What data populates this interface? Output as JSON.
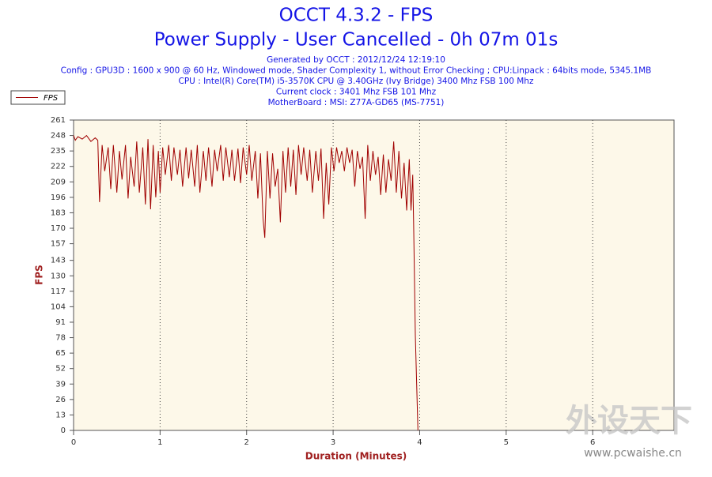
{
  "chart_data": {
    "type": "line",
    "title": "OCCT 4.3.2 - FPS",
    "subtitle": "Power Supply - User Cancelled - 0h 07m 01s",
    "info": [
      "Generated by OCCT : 2012/12/24 12:19:10",
      "Config : GPU3D : 1600 x 900 @ 60 Hz, Windowed mode, Shader Complexity 1, without Error Checking ; CPU:Linpack : 64bits mode, 5345.1MB",
      "CPU : Intel(R) Core(TM) i5-3570K CPU @ 3.40GHz (Ivy Bridge) 3400 Mhz FSB 100 Mhz",
      "Current clock : 3401 Mhz FSB 101 Mhz",
      "MotherBoard : MSI: Z77A-GD65 (MS-7751)"
    ],
    "x_label": "Duration (Minutes)",
    "y_label": "FPS",
    "xlim": [
      0,
      6.94
    ],
    "xticks": [
      0,
      1,
      2,
      3,
      4,
      5,
      6
    ],
    "ylim": [
      0,
      261
    ],
    "yticks": [
      0,
      13,
      26,
      39,
      52,
      65,
      78,
      91,
      104,
      117,
      130,
      143,
      157,
      170,
      183,
      196,
      209,
      222,
      235,
      248,
      261
    ],
    "grid": true,
    "legend": "top-left",
    "x": [
      0,
      0.02,
      0.05,
      0.1,
      0.15,
      0.2,
      0.25,
      0.28,
      0.3,
      0.33,
      0.36,
      0.4,
      0.43,
      0.46,
      0.5,
      0.53,
      0.56,
      0.6,
      0.63,
      0.66,
      0.7,
      0.73,
      0.76,
      0.8,
      0.83,
      0.86,
      0.89,
      0.92,
      0.95,
      0.98,
      1.0,
      1.03,
      1.06,
      1.1,
      1.13,
      1.16,
      1.2,
      1.23,
      1.26,
      1.3,
      1.33,
      1.36,
      1.4,
      1.43,
      1.46,
      1.5,
      1.53,
      1.56,
      1.6,
      1.63,
      1.66,
      1.7,
      1.73,
      1.76,
      1.8,
      1.83,
      1.86,
      1.9,
      1.93,
      1.96,
      2.0,
      2.03,
      2.06,
      2.1,
      2.13,
      2.16,
      2.19,
      2.21,
      2.24,
      2.27,
      2.3,
      2.33,
      2.36,
      2.39,
      2.42,
      2.45,
      2.48,
      2.51,
      2.54,
      2.57,
      2.6,
      2.63,
      2.66,
      2.7,
      2.73,
      2.76,
      2.8,
      2.83,
      2.86,
      2.89,
      2.92,
      2.95,
      2.98,
      3.01,
      3.04,
      3.07,
      3.1,
      3.13,
      3.16,
      3.19,
      3.22,
      3.25,
      3.28,
      3.31,
      3.34,
      3.37,
      3.4,
      3.43,
      3.46,
      3.49,
      3.52,
      3.55,
      3.58,
      3.61,
      3.64,
      3.67,
      3.7,
      3.73,
      3.76,
      3.79,
      3.82,
      3.85,
      3.88,
      3.9,
      3.92,
      3.93,
      3.95,
      3.98
    ],
    "series": [
      {
        "name": "FPS",
        "color": "#a00000",
        "values": [
          248,
          244,
          247,
          245,
          248,
          243,
          246,
          244,
          192,
          240,
          218,
          238,
          203,
          240,
          200,
          235,
          211,
          240,
          195,
          230,
          205,
          243,
          200,
          238,
          190,
          245,
          186,
          240,
          196,
          235,
          200,
          238,
          215,
          240,
          210,
          238,
          215,
          236,
          205,
          238,
          212,
          236,
          205,
          240,
          200,
          235,
          210,
          238,
          205,
          236,
          218,
          240,
          210,
          238,
          213,
          236,
          210,
          237,
          208,
          238,
          215,
          240,
          210,
          235,
          195,
          233,
          178,
          162,
          235,
          195,
          233,
          205,
          220,
          175,
          235,
          200,
          238,
          205,
          236,
          198,
          240,
          215,
          238,
          210,
          236,
          200,
          235,
          210,
          237,
          178,
          225,
          190,
          238,
          218,
          238,
          225,
          235,
          218,
          238,
          225,
          236,
          205,
          235,
          220,
          230,
          178,
          240,
          210,
          235,
          215,
          230,
          198,
          232,
          200,
          228,
          210,
          243,
          200,
          235,
          195,
          225,
          185,
          228,
          185,
          215,
          175,
          80,
          0
        ]
      }
    ],
    "watermark": {
      "logo": "外设天下",
      "url": "www.pcwaishe.cn"
    }
  }
}
